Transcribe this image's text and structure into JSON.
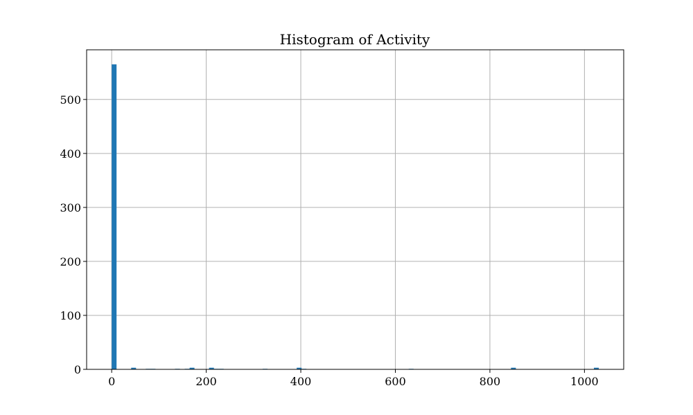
{
  "chart_data": {
    "type": "bar",
    "title": "Histogram of Activity",
    "xlabel": "",
    "ylabel": "",
    "xlim": [
      -53,
      1083
    ],
    "ylim": [
      0,
      592
    ],
    "grid": true,
    "bar_color": "#1f77b4",
    "bin_width": 10.3,
    "x_ticks": [
      0,
      200,
      400,
      600,
      800,
      1000
    ],
    "x_tick_labels": [
      "0",
      "200",
      "400",
      "600",
      "800",
      "1000"
    ],
    "y_ticks": [
      0,
      100,
      200,
      300,
      400,
      500
    ],
    "y_tick_labels": [
      "0",
      "100",
      "200",
      "300",
      "400",
      "500"
    ],
    "bins": [
      {
        "start": 0,
        "count": 565
      },
      {
        "start": 41.2,
        "count": 3
      },
      {
        "start": 72.1,
        "count": 1
      },
      {
        "start": 82.4,
        "count": 1
      },
      {
        "start": 133.9,
        "count": 1
      },
      {
        "start": 154.5,
        "count": 1
      },
      {
        "start": 164.8,
        "count": 3
      },
      {
        "start": 206,
        "count": 3
      },
      {
        "start": 216.3,
        "count": 1
      },
      {
        "start": 226.6,
        "count": 1
      },
      {
        "start": 319.3,
        "count": 1
      },
      {
        "start": 391.4,
        "count": 3
      },
      {
        "start": 401.7,
        "count": 1
      },
      {
        "start": 628.3,
        "count": 1
      },
      {
        "start": 844.6,
        "count": 3
      },
      {
        "start": 1020,
        "count": 3
      }
    ]
  }
}
